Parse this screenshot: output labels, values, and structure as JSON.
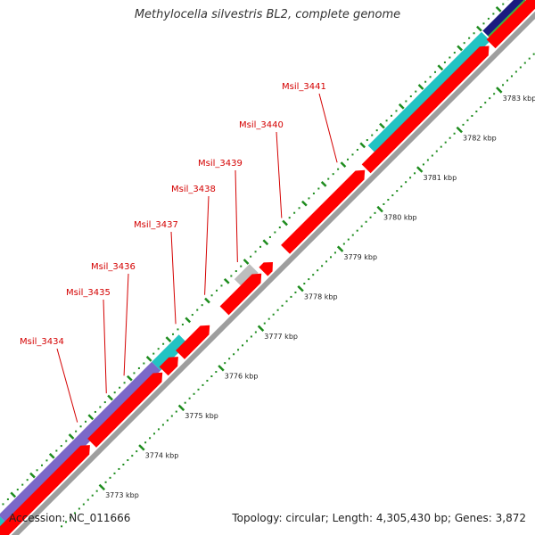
{
  "title": "Methylocella silvestris BL2, complete genome",
  "footer": {
    "accession": "Accession: NC_011666",
    "stats": "Topology: circular; Length: 4,305,430 bp; Genes: 3,872"
  },
  "colors": {
    "red_gene": "#ff0000",
    "cyan_gene": "#22c3c3",
    "purple_gene": "#7b68c8",
    "gray_gene": "#bdbdbd",
    "navy_gene": "#1a1a80",
    "green_gene": "#3fb43f",
    "backbone": "#9e9e9e",
    "tick": "#1e8c1e",
    "label": "#d40000"
  },
  "gene_labels": [
    {
      "name": "Msil_3434"
    },
    {
      "name": "Msil_3435"
    },
    {
      "name": "Msil_3436"
    },
    {
      "name": "Msil_3437"
    },
    {
      "name": "Msil_3438"
    },
    {
      "name": "Msil_3439"
    },
    {
      "name": "Msil_3440"
    },
    {
      "name": "Msil_3441"
    }
  ],
  "kbp_ticks": [
    {
      "label": "3773 kbp"
    },
    {
      "label": "3774 kbp"
    },
    {
      "label": "3775 kbp"
    },
    {
      "label": "3776 kbp"
    },
    {
      "label": "3777 kbp"
    },
    {
      "label": "3778 kbp"
    },
    {
      "label": "3779 kbp"
    },
    {
      "label": "3780 kbp"
    },
    {
      "label": "3781 kbp"
    },
    {
      "label": "3782 kbp"
    },
    {
      "label": "3783 kbp"
    }
  ]
}
